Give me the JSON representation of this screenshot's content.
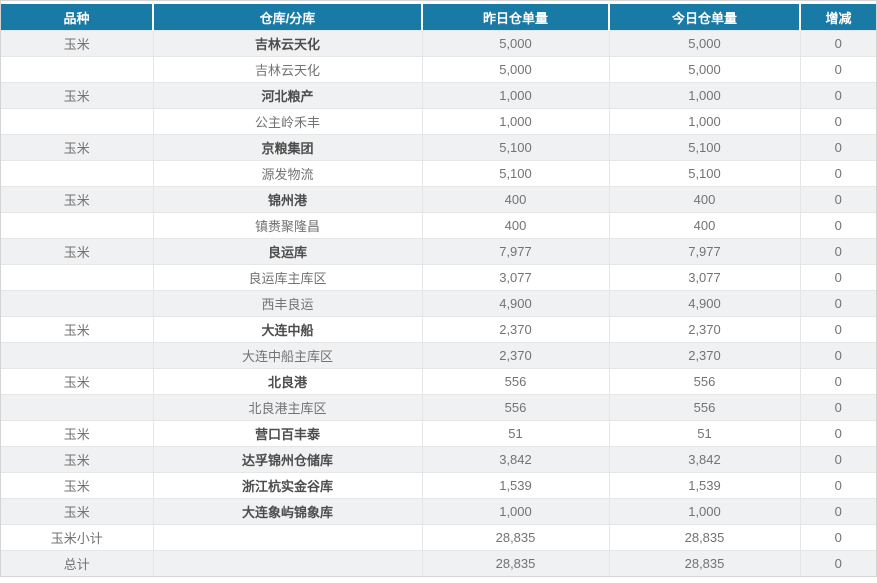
{
  "colors": {
    "header_bg": "#1a7aa6",
    "header_text": "#ffffff",
    "alt_row_bg": "#f0f1f2",
    "cell_text": "#737373",
    "bold_text": "#4d4d4d",
    "border_outer": "#d4d4d4",
    "border_row": "#e6e6e6"
  },
  "table": {
    "columns": [
      {
        "key": "variety",
        "label": "品种"
      },
      {
        "key": "warehouse",
        "label": "仓库/分库"
      },
      {
        "key": "yesterday",
        "label": "昨日仓单量"
      },
      {
        "key": "today",
        "label": "今日仓单量"
      },
      {
        "key": "change",
        "label": "增减"
      }
    ],
    "rows": [
      {
        "variety": "玉米",
        "warehouse": "吉林云天化",
        "warehouse_bold": true,
        "yesterday": "5,000",
        "today": "5,000",
        "change": "0"
      },
      {
        "variety": "",
        "warehouse": "吉林云天化",
        "warehouse_bold": false,
        "yesterday": "5,000",
        "today": "5,000",
        "change": "0"
      },
      {
        "variety": "玉米",
        "warehouse": "河北粮产",
        "warehouse_bold": true,
        "yesterday": "1,000",
        "today": "1,000",
        "change": "0"
      },
      {
        "variety": "",
        "warehouse": "公主岭禾丰",
        "warehouse_bold": false,
        "yesterday": "1,000",
        "today": "1,000",
        "change": "0"
      },
      {
        "variety": "玉米",
        "warehouse": "京粮集团",
        "warehouse_bold": true,
        "yesterday": "5,100",
        "today": "5,100",
        "change": "0"
      },
      {
        "variety": "",
        "warehouse": "源发物流",
        "warehouse_bold": false,
        "yesterday": "5,100",
        "today": "5,100",
        "change": "0"
      },
      {
        "variety": "玉米",
        "warehouse": "锦州港",
        "warehouse_bold": true,
        "yesterday": "400",
        "today": "400",
        "change": "0"
      },
      {
        "variety": "",
        "warehouse": "镇赉聚隆昌",
        "warehouse_bold": false,
        "yesterday": "400",
        "today": "400",
        "change": "0"
      },
      {
        "variety": "玉米",
        "warehouse": "良运库",
        "warehouse_bold": true,
        "yesterday": "7,977",
        "today": "7,977",
        "change": "0"
      },
      {
        "variety": "",
        "warehouse": "良运库主库区",
        "warehouse_bold": false,
        "yesterday": "3,077",
        "today": "3,077",
        "change": "0"
      },
      {
        "variety": "",
        "warehouse": "西丰良运",
        "warehouse_bold": false,
        "yesterday": "4,900",
        "today": "4,900",
        "change": "0"
      },
      {
        "variety": "玉米",
        "warehouse": "大连中船",
        "warehouse_bold": true,
        "yesterday": "2,370",
        "today": "2,370",
        "change": "0"
      },
      {
        "variety": "",
        "warehouse": "大连中船主库区",
        "warehouse_bold": false,
        "yesterday": "2,370",
        "today": "2,370",
        "change": "0"
      },
      {
        "variety": "玉米",
        "warehouse": "北良港",
        "warehouse_bold": true,
        "yesterday": "556",
        "today": "556",
        "change": "0"
      },
      {
        "variety": "",
        "warehouse": "北良港主库区",
        "warehouse_bold": false,
        "yesterday": "556",
        "today": "556",
        "change": "0"
      },
      {
        "variety": "玉米",
        "warehouse": "营口百丰泰",
        "warehouse_bold": true,
        "yesterday": "51",
        "today": "51",
        "change": "0"
      },
      {
        "variety": "玉米",
        "warehouse": "达孚锦州仓储库",
        "warehouse_bold": true,
        "yesterday": "3,842",
        "today": "3,842",
        "change": "0"
      },
      {
        "variety": "玉米",
        "warehouse": "浙江杭实金谷库",
        "warehouse_bold": true,
        "yesterday": "1,539",
        "today": "1,539",
        "change": "0"
      },
      {
        "variety": "玉米",
        "warehouse": "大连象屿锦象库",
        "warehouse_bold": true,
        "yesterday": "1,000",
        "today": "1,000",
        "change": "0"
      },
      {
        "variety": "玉米小计",
        "warehouse": "",
        "warehouse_bold": false,
        "yesterday": "28,835",
        "today": "28,835",
        "change": "0"
      },
      {
        "variety": "总计",
        "warehouse": "",
        "warehouse_bold": false,
        "yesterday": "28,835",
        "today": "28,835",
        "change": "0"
      }
    ]
  }
}
